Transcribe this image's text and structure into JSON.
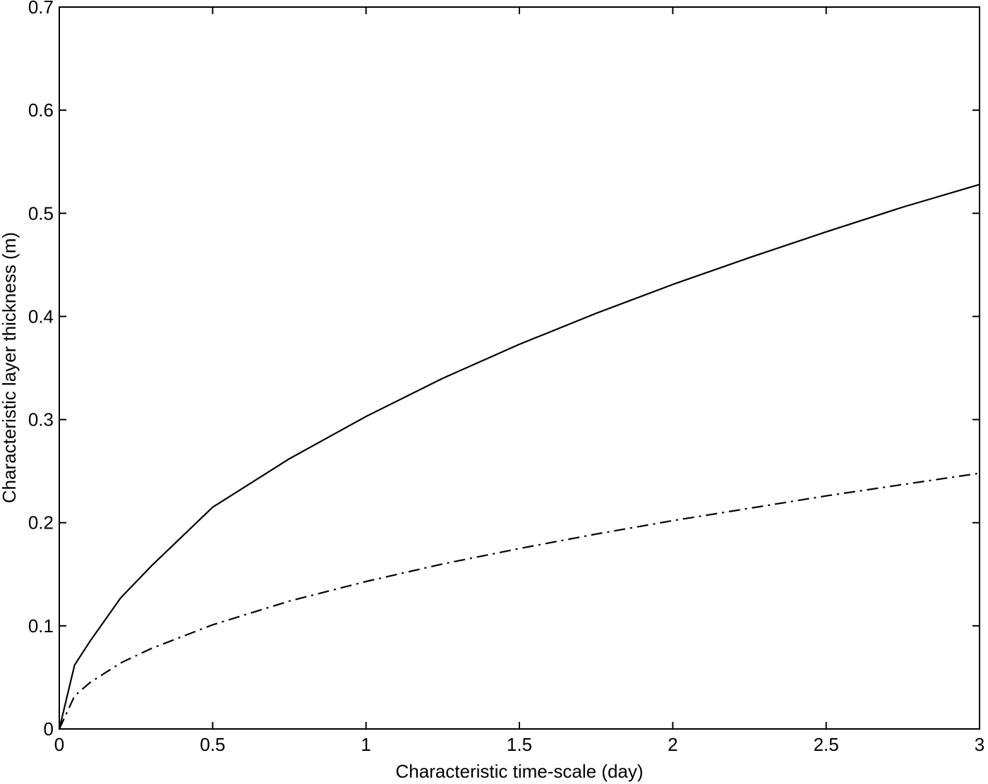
{
  "chart_data": {
    "type": "line",
    "title": "",
    "xlabel": "Characteristic time-scale (day)",
    "ylabel": "Characteristic layer thickness (m)",
    "xlim": [
      0,
      3
    ],
    "ylim": [
      0,
      0.7
    ],
    "xticks": [
      0,
      0.5,
      1,
      1.5,
      2,
      2.5,
      3
    ],
    "xtick_labels": [
      "0",
      "0.5",
      "1",
      "1.5",
      "2",
      "2.5",
      "3"
    ],
    "yticks": [
      0,
      0.1,
      0.2,
      0.3,
      0.4,
      0.5,
      0.6,
      0.7
    ],
    "ytick_labels": [
      "0",
      "0.1",
      "0.2",
      "0.3",
      "0.4",
      "0.5",
      "0.6",
      "0.7"
    ],
    "grid": false,
    "legend": "none",
    "series": [
      {
        "style": "solid",
        "color": "#000000",
        "x": [
          0,
          0.05,
          0.1,
          0.2,
          0.3,
          0.5,
          0.75,
          1,
          1.25,
          1.5,
          1.75,
          2,
          2.25,
          2.5,
          2.75,
          3
        ],
        "y": [
          0,
          0.062,
          0.085,
          0.127,
          0.158,
          0.215,
          0.262,
          0.303,
          0.34,
          0.373,
          0.403,
          0.431,
          0.457,
          0.482,
          0.506,
          0.528
        ]
      },
      {
        "style": "dash-dot",
        "color": "#000000",
        "x": [
          0,
          0.05,
          0.1,
          0.2,
          0.3,
          0.5,
          0.75,
          1,
          1.25,
          1.5,
          1.75,
          2,
          2.25,
          2.5,
          2.75,
          3
        ],
        "y": [
          0,
          0.032,
          0.045,
          0.064,
          0.078,
          0.101,
          0.124,
          0.143,
          0.16,
          0.175,
          0.189,
          0.202,
          0.214,
          0.226,
          0.237,
          0.248
        ]
      }
    ]
  }
}
